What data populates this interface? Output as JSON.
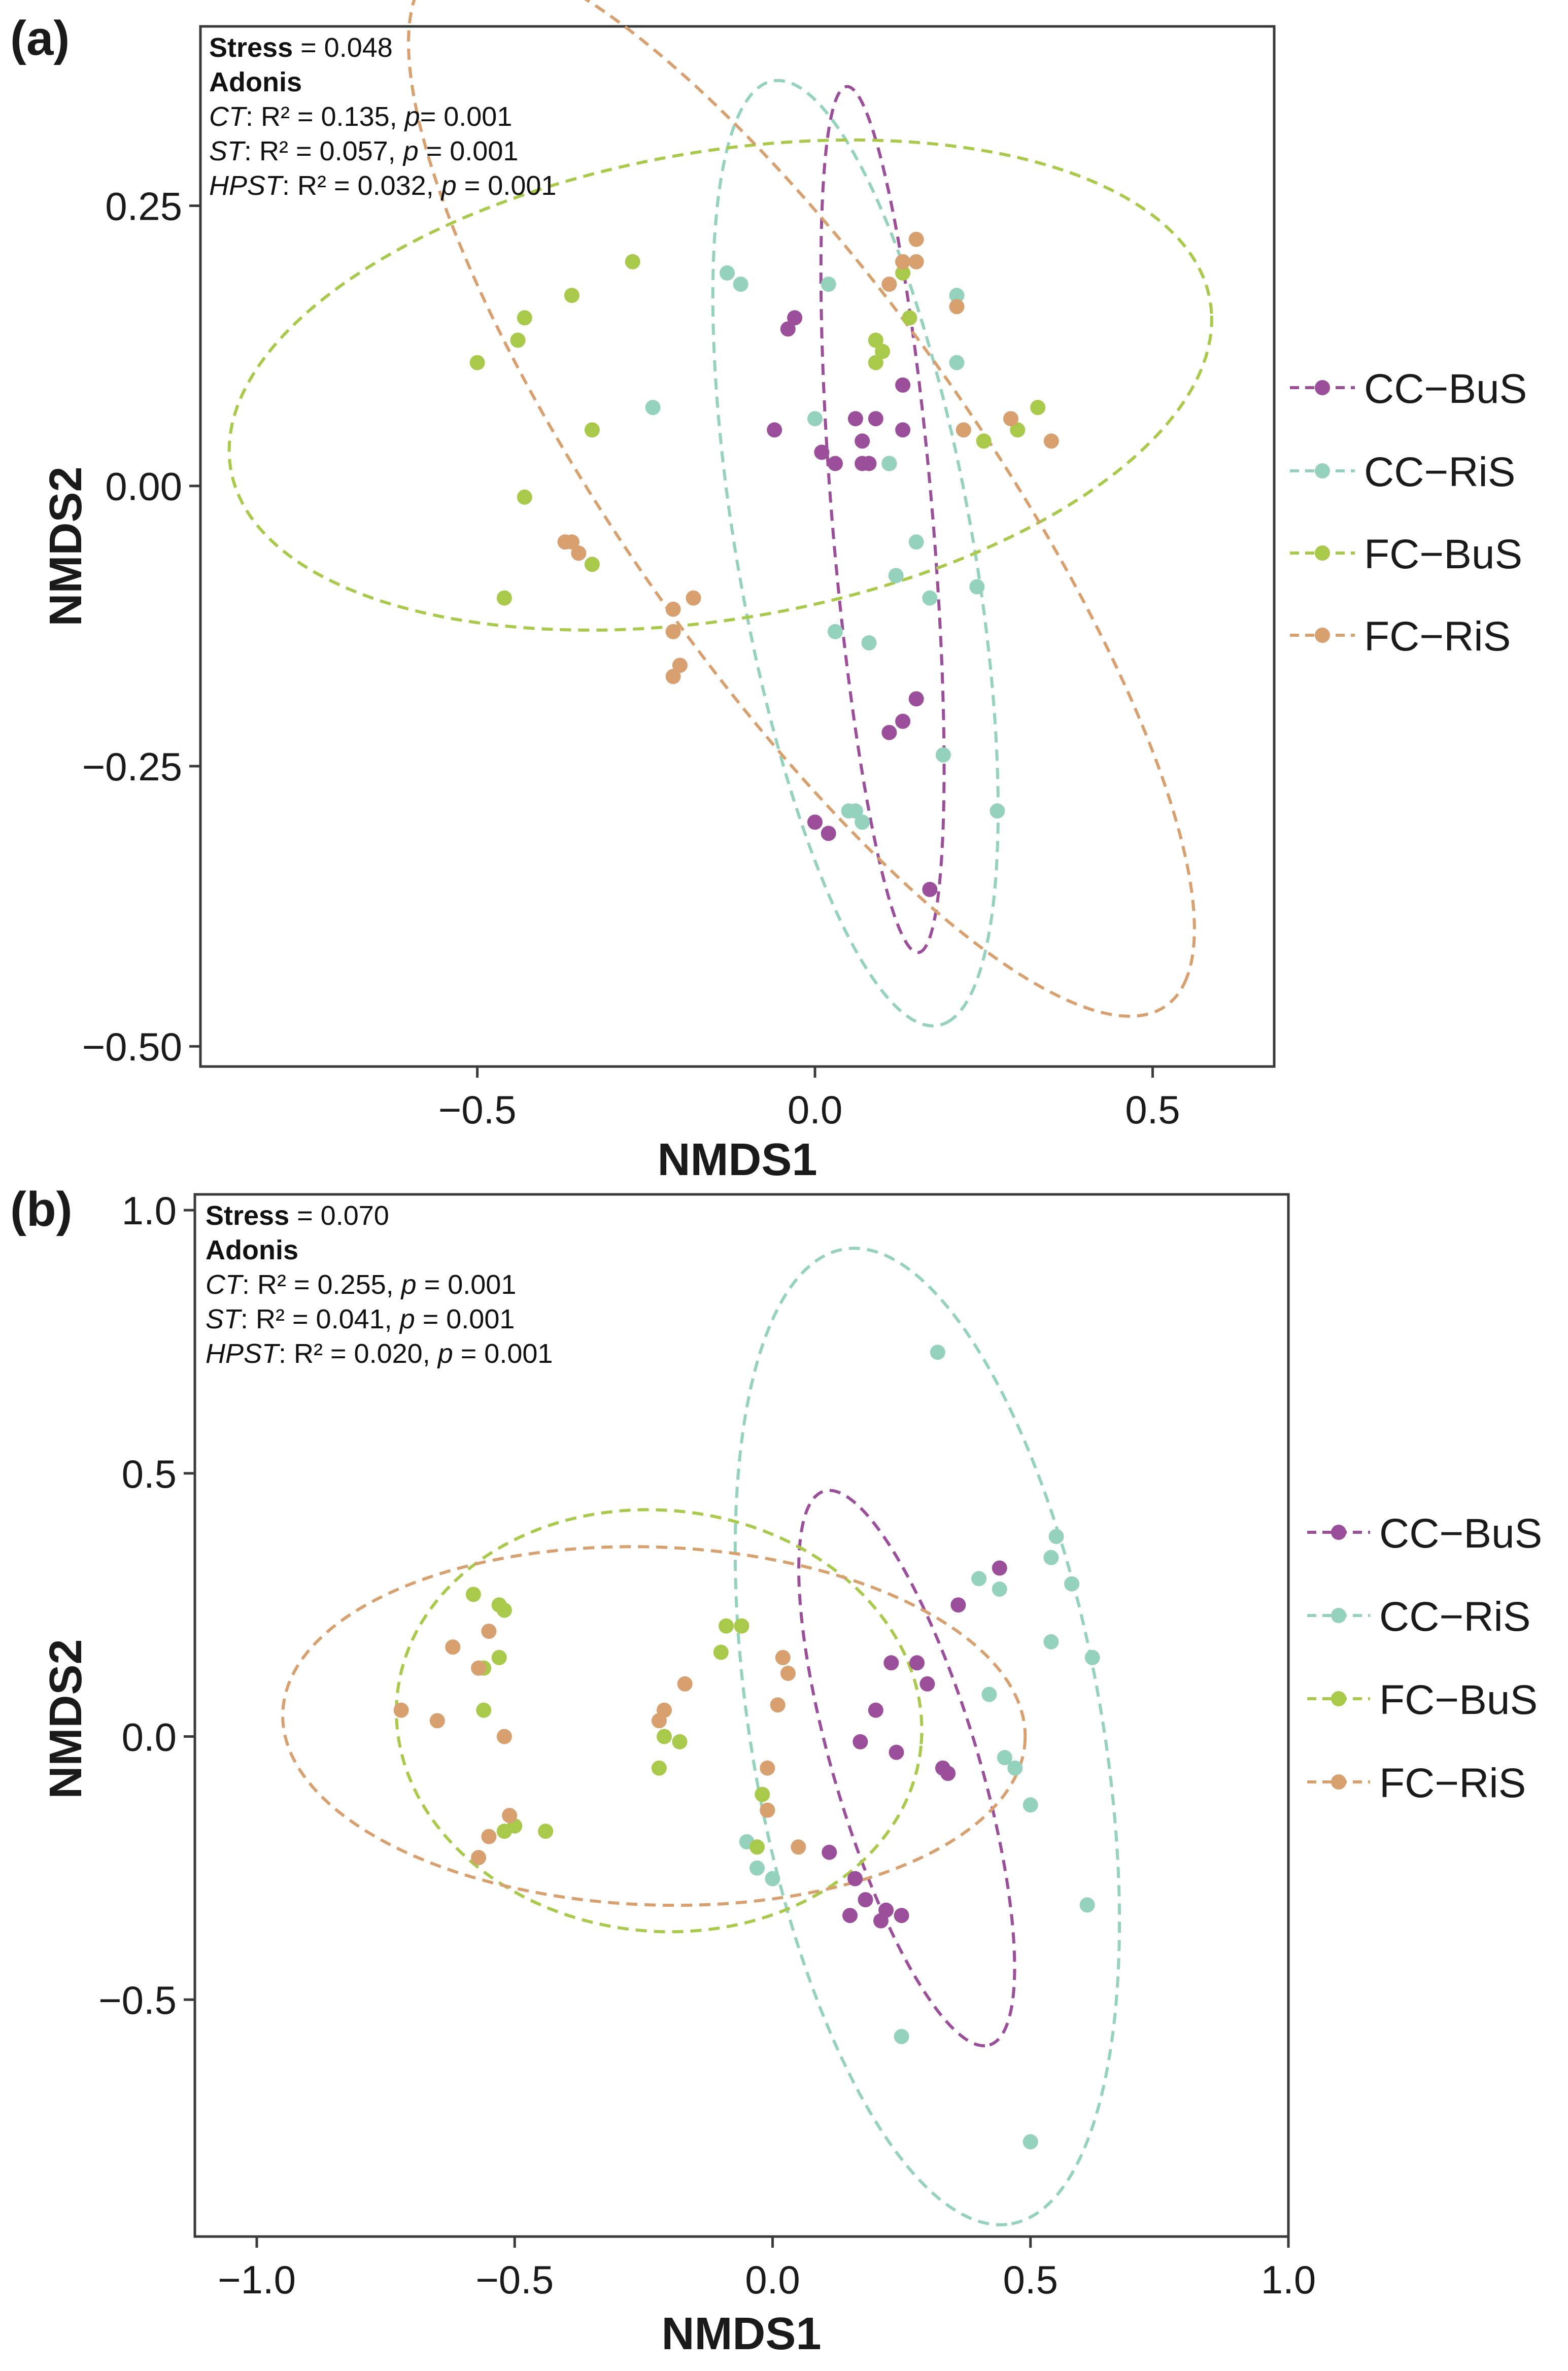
{
  "chart_data": [
    {
      "type": "scatter",
      "panel_label": "(a)",
      "xlabel": "NMDS1",
      "ylabel": "NMDS2",
      "xlim": [
        -0.91,
        0.68
      ],
      "ylim": [
        -0.518,
        0.41
      ],
      "xticks": [
        -0.5,
        0.0,
        0.5
      ],
      "xtick_labels": [
        "−0.5",
        "0.0",
        "0.5"
      ],
      "yticks": [
        0.25,
        0.0,
        -0.25,
        -0.5
      ],
      "ytick_labels": [
        "0.25",
        "0.00",
        "−0.25",
        "−0.50"
      ],
      "grid": false,
      "legend_position": "right",
      "annotations": {
        "stress_label": "Stress",
        "stress_value": " = 0.048",
        "test_name": "Adonis",
        "tests": [
          {
            "factor": "CT",
            "r2": ": R² = 0.135, ",
            "p_label": "p",
            "p_value": "= 0.001"
          },
          {
            "factor": "ST",
            "r2": ": R² = 0.057, ",
            "p_label": "p",
            "p_value": " = 0.001"
          },
          {
            "factor": "HPST",
            "r2": ": R² = 0.032, ",
            "p_label": "p",
            "p_value": " = 0.001"
          }
        ]
      },
      "series": [
        {
          "name": "CC−BuS",
          "color": "#9b4f9b",
          "ellipse": {
            "cx": 0.1,
            "cy": -0.03,
            "rx": 0.39,
            "ry": 0.074,
            "angle_deg": -82
          },
          "points": [
            [
              -0.04,
              0.14
            ],
            [
              -0.03,
              0.15
            ],
            [
              -0.06,
              0.05
            ],
            [
              0.01,
              0.03
            ],
            [
              0.03,
              0.02
            ],
            [
              0.06,
              0.06
            ],
            [
              0.07,
              0.04
            ],
            [
              0.08,
              0.02
            ],
            [
              0.09,
              0.06
            ],
            [
              0.07,
              0.02
            ],
            [
              0.11,
              0.02
            ],
            [
              0.13,
              0.09
            ],
            [
              0.13,
              0.05
            ],
            [
              0.15,
              -0.19
            ],
            [
              0.13,
              -0.21
            ],
            [
              0.11,
              -0.22
            ],
            [
              0.0,
              -0.3
            ],
            [
              0.02,
              -0.31
            ],
            [
              0.17,
              -0.36
            ]
          ]
        },
        {
          "name": "CC−RiS",
          "color": "#94d2bd",
          "ellipse": {
            "cx": 0.06,
            "cy": -0.06,
            "rx": 0.44,
            "ry": 0.17,
            "angle_deg": -72
          },
          "points": [
            [
              -0.13,
              0.19
            ],
            [
              -0.11,
              0.18
            ],
            [
              0.02,
              0.18
            ],
            [
              -0.24,
              0.07
            ],
            [
              0.21,
              0.17
            ],
            [
              0.21,
              0.11
            ],
            [
              0.0,
              0.06
            ],
            [
              0.11,
              0.02
            ],
            [
              0.15,
              -0.05
            ],
            [
              0.12,
              -0.08
            ],
            [
              0.17,
              -0.1
            ],
            [
              0.24,
              -0.09
            ],
            [
              0.03,
              -0.13
            ],
            [
              0.08,
              -0.14
            ],
            [
              0.19,
              -0.24
            ],
            [
              0.05,
              -0.29
            ],
            [
              0.06,
              -0.29
            ],
            [
              0.07,
              -0.3
            ],
            [
              0.27,
              -0.29
            ]
          ]
        },
        {
          "name": "FC−BuS",
          "color": "#a8c94a",
          "ellipse": {
            "cx": -0.14,
            "cy": 0.09,
            "rx": 0.73,
            "ry": 0.21,
            "angle_deg": 5
          },
          "points": [
            [
              -0.27,
              0.2
            ],
            [
              -0.36,
              0.17
            ],
            [
              -0.43,
              0.15
            ],
            [
              -0.44,
              0.13
            ],
            [
              -0.5,
              0.11
            ],
            [
              -0.33,
              0.05
            ],
            [
              -0.43,
              -0.01
            ],
            [
              -0.33,
              -0.07
            ],
            [
              -0.46,
              -0.1
            ],
            [
              0.09,
              0.13
            ],
            [
              0.1,
              0.12
            ],
            [
              0.09,
              0.11
            ],
            [
              0.13,
              0.19
            ],
            [
              0.14,
              0.15
            ],
            [
              0.25,
              0.04
            ],
            [
              0.3,
              0.05
            ],
            [
              0.33,
              0.07
            ]
          ]
        },
        {
          "name": "FC−RiS",
          "color": "#d8a06e",
          "ellipse": {
            "cx": -0.02,
            "cy": 0.0,
            "rx": 0.72,
            "ry": 0.21,
            "angle_deg": -38
          },
          "points": [
            [
              0.15,
              0.22
            ],
            [
              0.13,
              0.2
            ],
            [
              0.15,
              0.2
            ],
            [
              0.11,
              0.18
            ],
            [
              0.21,
              0.16
            ],
            [
              0.22,
              0.05
            ],
            [
              0.29,
              0.06
            ],
            [
              0.35,
              0.04
            ],
            [
              -0.37,
              -0.05
            ],
            [
              -0.36,
              -0.05
            ],
            [
              -0.35,
              -0.06
            ],
            [
              -0.21,
              -0.11
            ],
            [
              -0.18,
              -0.1
            ],
            [
              -0.21,
              -0.13
            ],
            [
              -0.2,
              -0.16
            ],
            [
              -0.21,
              -0.17
            ]
          ]
        }
      ]
    },
    {
      "type": "scatter",
      "panel_label": "(b)",
      "xlabel": "NMDS1",
      "ylabel": "NMDS2",
      "xlim": [
        -1.12,
        1.0
      ],
      "ylim": [
        -0.95,
        1.03
      ],
      "xticks": [
        -1.0,
        -0.5,
        0.0,
        0.5,
        1.0
      ],
      "xtick_labels": [
        "−1.0",
        "−0.5",
        "0.0",
        "0.5",
        "1.0"
      ],
      "yticks": [
        1.0,
        0.5,
        0.0,
        -0.5
      ],
      "ytick_labels": [
        "1.0",
        "0.5",
        "0.0",
        "−0.5"
      ],
      "grid": false,
      "legend_position": "right",
      "annotations": {
        "stress_label": "Stress",
        "stress_value": " = 0.070",
        "test_name": "Adonis",
        "tests": [
          {
            "factor": "CT",
            "r2": ": R² = 0.255, ",
            "p_label": "p",
            "p_value": " = 0.001"
          },
          {
            "factor": "ST",
            "r2": ": R² = 0.041, ",
            "p_label": "p",
            "p_value": " = 0.001"
          },
          {
            "factor": "HPST",
            "r2": ": R² = 0.020, ",
            "p_label": "p",
            "p_value": " = 0.001"
          }
        ]
      },
      "series": [
        {
          "name": "CC−BuS",
          "color": "#9b4f9b",
          "ellipse": {
            "cx": 0.26,
            "cy": -0.06,
            "rx": 0.55,
            "ry": 0.14,
            "angle_deg": -73
          },
          "points": [
            [
              0.36,
              0.25
            ],
            [
              0.44,
              0.32
            ],
            [
              0.23,
              0.14
            ],
            [
              0.28,
              0.14
            ],
            [
              0.3,
              0.1
            ],
            [
              0.2,
              0.05
            ],
            [
              0.17,
              -0.01
            ],
            [
              0.24,
              -0.03
            ],
            [
              0.33,
              -0.06
            ],
            [
              0.34,
              -0.07
            ],
            [
              0.16,
              -0.27
            ],
            [
              0.18,
              -0.31
            ],
            [
              0.22,
              -0.33
            ],
            [
              0.25,
              -0.34
            ],
            [
              0.15,
              -0.34
            ],
            [
              0.21,
              -0.35
            ],
            [
              0.11,
              -0.22
            ]
          ]
        },
        {
          "name": "CC−RiS",
          "color": "#94d2bd",
          "ellipse": {
            "cx": 0.3,
            "cy": 0.0,
            "rx": 0.94,
            "ry": 0.34,
            "angle_deg": -80
          },
          "points": [
            [
              0.32,
              0.73
            ],
            [
              0.55,
              0.38
            ],
            [
              0.54,
              0.34
            ],
            [
              0.4,
              0.3
            ],
            [
              0.44,
              0.28
            ],
            [
              0.58,
              0.29
            ],
            [
              0.54,
              0.18
            ],
            [
              0.62,
              0.15
            ],
            [
              0.42,
              0.08
            ],
            [
              0.45,
              -0.04
            ],
            [
              0.47,
              -0.06
            ],
            [
              0.5,
              -0.13
            ],
            [
              0.61,
              -0.32
            ],
            [
              -0.05,
              -0.2
            ],
            [
              -0.03,
              -0.25
            ],
            [
              0.0,
              -0.27
            ],
            [
              0.25,
              -0.57
            ],
            [
              0.5,
              -0.77
            ]
          ]
        },
        {
          "name": "FC−BuS",
          "color": "#a8c94a",
          "ellipse": {
            "cx": -0.22,
            "cy": 0.03,
            "rx": 0.51,
            "ry": 0.4,
            "angle_deg": -5
          },
          "points": [
            [
              -0.58,
              0.27
            ],
            [
              -0.53,
              0.25
            ],
            [
              -0.52,
              0.24
            ],
            [
              -0.56,
              0.13
            ],
            [
              -0.53,
              0.15
            ],
            [
              -0.56,
              0.05
            ],
            [
              -0.09,
              0.21
            ],
            [
              -0.06,
              0.21
            ],
            [
              -0.1,
              0.16
            ],
            [
              -0.21,
              0.0
            ],
            [
              -0.18,
              -0.01
            ],
            [
              -0.22,
              -0.06
            ],
            [
              -0.02,
              -0.11
            ],
            [
              -0.01,
              -0.14
            ],
            [
              -0.03,
              -0.21
            ],
            [
              -0.52,
              -0.18
            ],
            [
              -0.5,
              -0.17
            ],
            [
              -0.44,
              -0.18
            ]
          ]
        },
        {
          "name": "FC−RiS",
          "color": "#d8a06e",
          "ellipse": {
            "cx": -0.23,
            "cy": 0.02,
            "rx": 0.72,
            "ry": 0.34,
            "angle_deg": -2
          },
          "points": [
            [
              -0.62,
              0.17
            ],
            [
              -0.55,
              0.2
            ],
            [
              -0.57,
              0.13
            ],
            [
              -0.72,
              0.05
            ],
            [
              -0.65,
              0.03
            ],
            [
              -0.52,
              0.0
            ],
            [
              -0.17,
              0.1
            ],
            [
              -0.21,
              0.05
            ],
            [
              -0.22,
              0.03
            ],
            [
              0.02,
              0.15
            ],
            [
              0.03,
              0.12
            ],
            [
              0.01,
              0.06
            ],
            [
              -0.01,
              -0.06
            ],
            [
              -0.01,
              -0.14
            ],
            [
              0.05,
              -0.21
            ],
            [
              -0.51,
              -0.15
            ],
            [
              -0.55,
              -0.19
            ],
            [
              -0.57,
              -0.23
            ]
          ]
        }
      ]
    }
  ]
}
